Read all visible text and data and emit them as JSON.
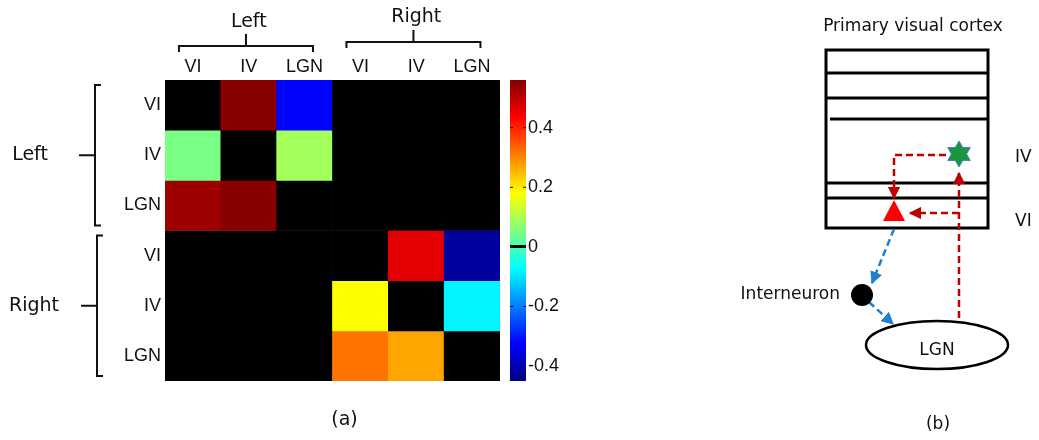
{
  "chart_data": [
    {
      "type": "heatmap",
      "categories": [
        "VI",
        "IV",
        "LGN",
        "VI",
        "IV",
        "LGN"
      ],
      "y_categories": [
        "VI",
        "IV",
        "LGN",
        "VI",
        "IV",
        "LGN"
      ],
      "cells": [
        [
          0,
          0.55,
          -0.32,
          0,
          0,
          0
        ],
        [
          0.05,
          0,
          0.09,
          0,
          0,
          0
        ],
        [
          0.53,
          0.55,
          0,
          0,
          0,
          0
        ],
        [
          0,
          0,
          0,
          0,
          0.46,
          -0.42
        ],
        [
          0,
          0,
          0,
          0.18,
          0,
          -0.08
        ],
        [
          0,
          0,
          0,
          0.32,
          0.27,
          0
        ]
      ],
      "clim": [
        -0.45,
        0.56
      ],
      "cticks": [
        0.4,
        0.2,
        0,
        -0.2,
        -0.4
      ],
      "annotations": [
        "Left",
        "Right",
        "Left",
        "Right",
        "(a)"
      ]
    },
    {
      "type": "other",
      "title": "Primary visual cortex",
      "annotations": [
        "IV",
        "VI",
        "Interneuron",
        "LGN",
        "(b)"
      ]
    }
  ]
}
